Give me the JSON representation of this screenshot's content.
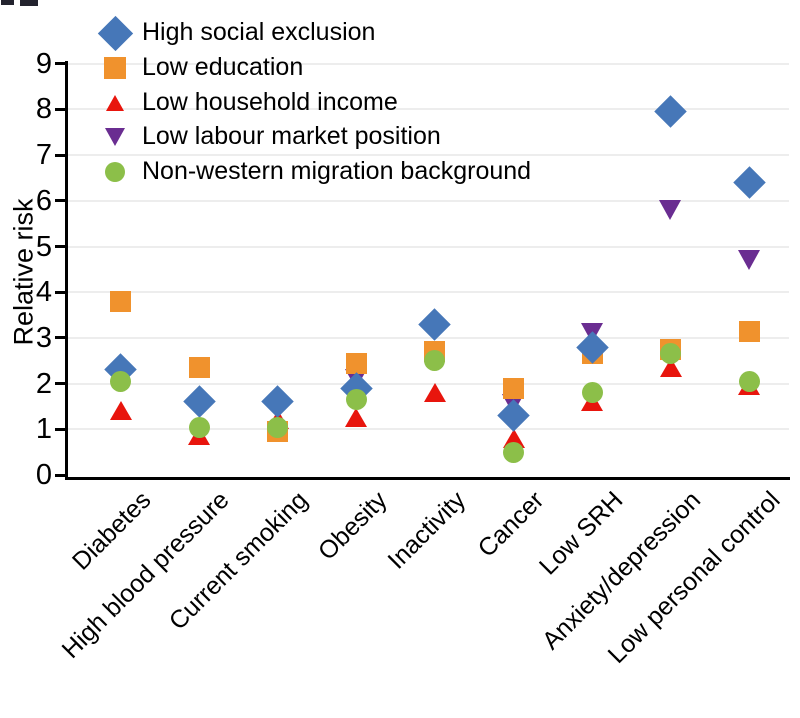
{
  "figure": {
    "background": "#ffffff",
    "y_axis_label": "Relative risk"
  },
  "legend": {
    "items": [
      {
        "label": "High social exclusion",
        "marker": "diamond",
        "color": "#4677b8"
      },
      {
        "label": "Low education",
        "marker": "square",
        "color": "#f0922d"
      },
      {
        "label": "Low household income",
        "marker": "triangle-up",
        "color": "#e8150d"
      },
      {
        "label": "Low labour market position",
        "marker": "triangle-down",
        "color": "#6a2d91"
      },
      {
        "label": "Non-western migration background",
        "marker": "circle",
        "color": "#8cbf49"
      }
    ]
  },
  "chart_data": {
    "type": "scatter",
    "title": "",
    "xlabel": "",
    "ylabel": "Relative risk",
    "ylim": [
      0,
      9
    ],
    "yticks": [
      0,
      1,
      2,
      3,
      4,
      5,
      6,
      7,
      8,
      9
    ],
    "grid": true,
    "legend_position": "upper left inside",
    "categories": [
      "Diabetes",
      "High blood pressure",
      "Current smoking",
      "Obesity",
      "Inactivity",
      "Cancer",
      "Low SRH",
      "Anxiety/depression",
      "Low personal control"
    ],
    "series": [
      {
        "name": "High social exclusion",
        "marker": "diamond",
        "color": "#4677b8",
        "values": [
          2.3,
          1.6,
          1.6,
          1.9,
          3.3,
          1.3,
          2.8,
          7.95,
          6.4
        ]
      },
      {
        "name": "Low education",
        "marker": "square",
        "color": "#f0922d",
        "values": [
          3.8,
          2.35,
          0.95,
          2.45,
          2.7,
          1.9,
          2.65,
          2.75,
          3.15
        ]
      },
      {
        "name": "Low household income",
        "marker": "triangle-up",
        "color": "#e8150d",
        "values": [
          1.4,
          0.85,
          1.2,
          1.25,
          1.8,
          0.8,
          1.6,
          2.35,
          1.95
        ]
      },
      {
        "name": "Low labour market position",
        "marker": "triangle-down",
        "color": "#6a2d91",
        "values": [
          null,
          null,
          null,
          2.1,
          null,
          1.55,
          3.1,
          5.8,
          4.7
        ]
      },
      {
        "name": "Non-western migration background",
        "marker": "circle",
        "color": "#8cbf49",
        "values": [
          2.05,
          1.05,
          1.05,
          1.65,
          2.5,
          0.5,
          1.8,
          2.65,
          2.05
        ]
      }
    ]
  }
}
